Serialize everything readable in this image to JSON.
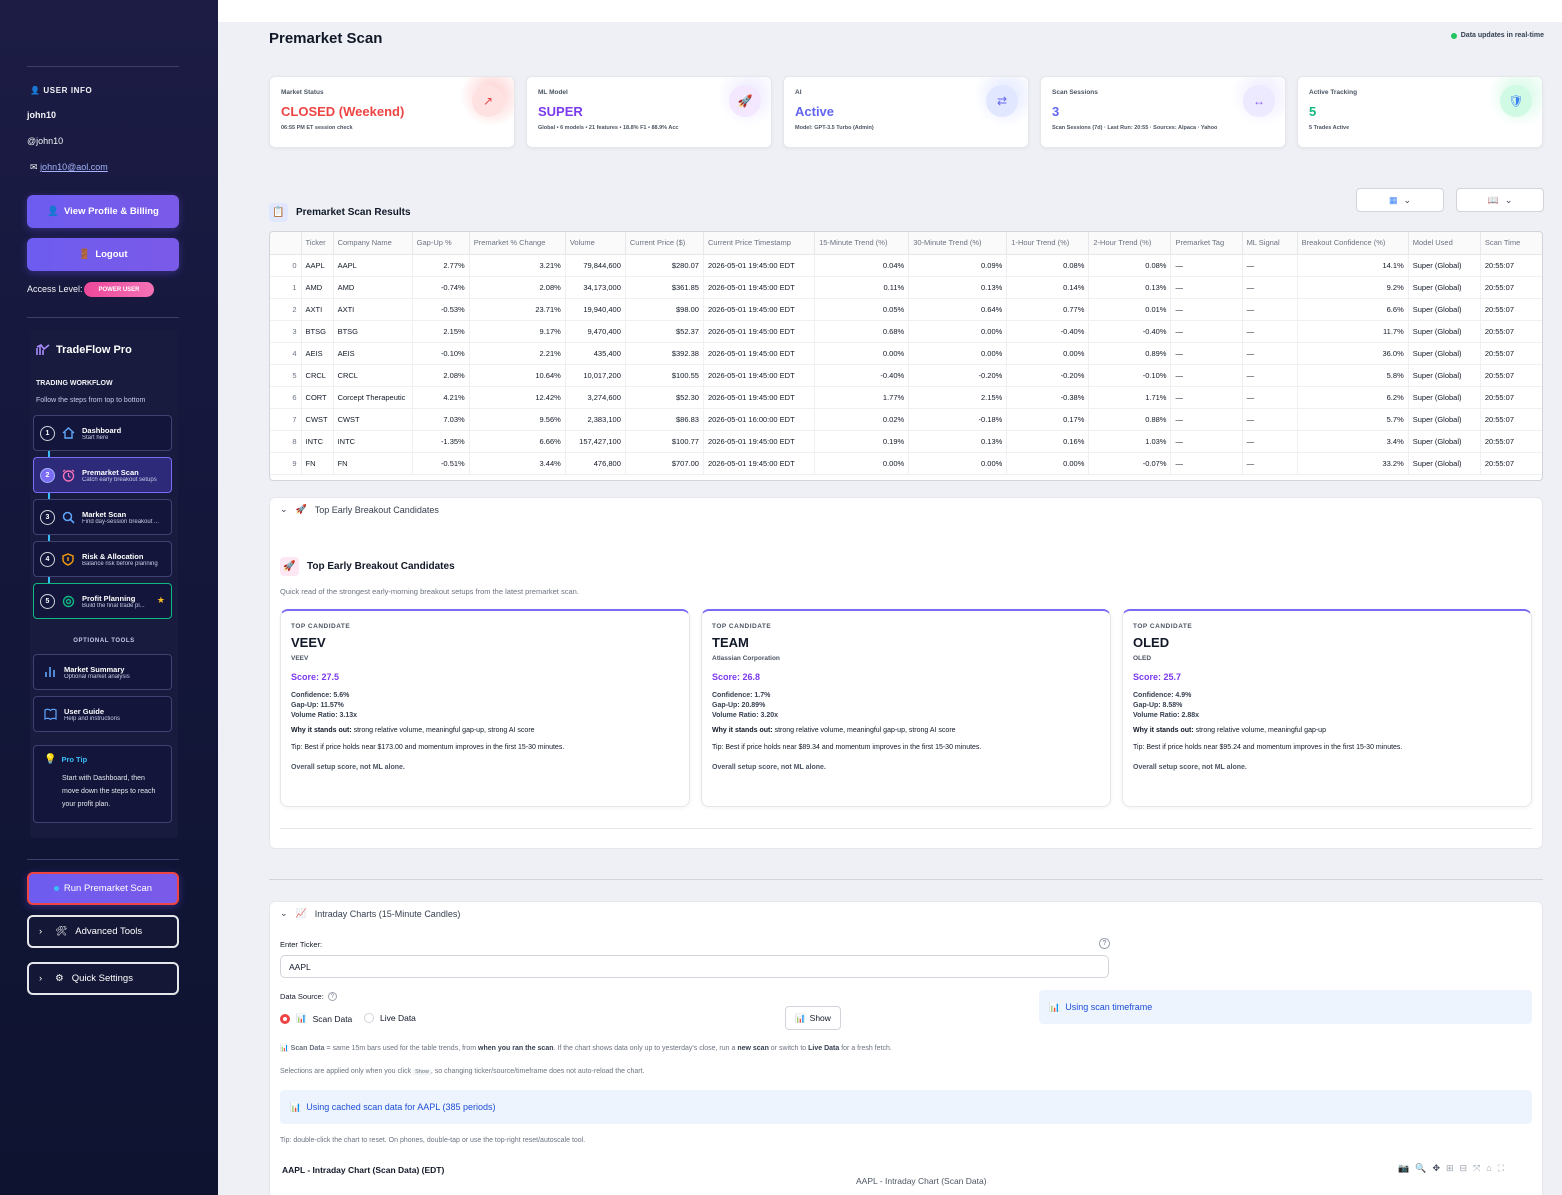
{
  "sidebar": {
    "user_info_title": "USER INFO",
    "username": "john10",
    "handle": "@john10",
    "email": "john10@aol.com",
    "profile_button": "View Profile & Billing",
    "logout_button": "Logout",
    "access_level_label": "Access Level:",
    "access_level_badge": "POWER USER",
    "app_name": "TradeFlow Pro",
    "workflow_title": "TRADING WORKFLOW",
    "workflow_hint": "Follow the steps from top to bottom",
    "steps": [
      {
        "num": "1",
        "label": "Dashboard",
        "desc": "Start here",
        "icon": "home-icon"
      },
      {
        "num": "2",
        "label": "Premarket Scan",
        "desc": "Catch early breakout setups",
        "icon": "alarm-clock-icon"
      },
      {
        "num": "3",
        "label": "Market Scan",
        "desc": "Find day-session breakout ...",
        "icon": "search-icon"
      },
      {
        "num": "4",
        "label": "Risk & Allocation",
        "desc": "Balance risk before planning",
        "icon": "shield-icon"
      },
      {
        "num": "5",
        "label": "Profit Planning",
        "desc": "Build the final trade pl...",
        "icon": "target-icon"
      }
    ],
    "optional_title": "OPTIONAL TOOLS",
    "optional": [
      {
        "label": "Market Summary",
        "desc": "Optional market analysis",
        "icon": "bar-chart-icon"
      },
      {
        "label": "User Guide",
        "desc": "Help and instructions",
        "icon": "book-icon"
      }
    ],
    "pro_tip_title": "Pro Tip",
    "pro_tip_text": "Start with Dashboard, then move down the steps to reach your profit plan.",
    "run_button": "Run Premarket Scan",
    "advanced_tools": "Advanced Tools",
    "quick_settings": "Quick Settings"
  },
  "header": {
    "title": "Premarket Scan",
    "realtime": "Data updates in real-time"
  },
  "cards": [
    {
      "label": "Market Status",
      "value": "CLOSED (Weekend)",
      "sub": "06:55 PM ET session check",
      "color": "#ef4444",
      "icon": "arrow-icon"
    },
    {
      "label": "ML Model",
      "value": "SUPER",
      "sub": "Global • 6 models • 21 features • 18.8% F1 • 88.9% Acc",
      "color": "#7c3aed",
      "icon": "rocket-icon"
    },
    {
      "label": "AI",
      "value": "Active",
      "sub": "Model: GPT-3.5 Turbo (Admin)",
      "color": "#6366f1",
      "icon": "exchange-icon"
    },
    {
      "label": "Scan Sessions",
      "value": "3",
      "sub": "Scan Sessions (7d) · Last Run: 20:55 · Sources: Alpaca · Yahoo",
      "color": "#6366f1",
      "icon": "resize-icon"
    },
    {
      "label": "Active Tracking",
      "value": "5",
      "sub": "5 Trades Active",
      "color": "#10b981",
      "icon": "shield-icon"
    }
  ],
  "results": {
    "title": "Premarket Scan Results",
    "columns": [
      "",
      "Ticker",
      "Company Name",
      "Gap-Up %",
      "Premarket % Change",
      "Volume",
      "Current Price ($)",
      "Current Price Timestamp",
      "15-Minute Trend (%)",
      "30-Minute Trend (%)",
      "1-Hour Trend (%)",
      "2-Hour Trend (%)",
      "Premarket Tag",
      "ML Signal",
      "Breakout Confidence (%)",
      "Model Used",
      "Scan Time"
    ],
    "rows": [
      [
        "0",
        "AAPL",
        "AAPL",
        "2.77%",
        "3.21%",
        "79,844,600",
        "$280.07",
        "2026-05-01 19:45:00 EDT",
        "0.04%",
        "0.09%",
        "0.08%",
        "0.08%",
        "—",
        "—",
        "14.1%",
        "Super (Global)",
        "20:55:07"
      ],
      [
        "1",
        "AMD",
        "AMD",
        "-0.74%",
        "2.08%",
        "34,173,000",
        "$361.85",
        "2026-05-01 19:45:00 EDT",
        "0.11%",
        "0.13%",
        "0.14%",
        "0.13%",
        "—",
        "—",
        "9.2%",
        "Super (Global)",
        "20:55:07"
      ],
      [
        "2",
        "AXTI",
        "AXTI",
        "-0.53%",
        "23.71%",
        "19,940,400",
        "$98.00",
        "2026-05-01 19:45:00 EDT",
        "0.05%",
        "0.64%",
        "0.77%",
        "0.01%",
        "—",
        "—",
        "6.6%",
        "Super (Global)",
        "20:55:07"
      ],
      [
        "3",
        "BTSG",
        "BTSG",
        "2.15%",
        "9.17%",
        "9,470,400",
        "$52.37",
        "2026-05-01 19:45:00 EDT",
        "0.68%",
        "0.00%",
        "-0.40%",
        "-0.40%",
        "—",
        "—",
        "11.7%",
        "Super (Global)",
        "20:55:07"
      ],
      [
        "4",
        "AEIS",
        "AEIS",
        "-0.10%",
        "2.21%",
        "435,400",
        "$392.38",
        "2026-05-01 19:45:00 EDT",
        "0.00%",
        "0.00%",
        "0.00%",
        "0.89%",
        "—",
        "—",
        "36.0%",
        "Super (Global)",
        "20:55:07"
      ],
      [
        "5",
        "CRCL",
        "CRCL",
        "2.08%",
        "10.64%",
        "10,017,200",
        "$100.55",
        "2026-05-01 19:45:00 EDT",
        "-0.40%",
        "-0.20%",
        "-0.20%",
        "-0.10%",
        "—",
        "—",
        "5.8%",
        "Super (Global)",
        "20:55:07"
      ],
      [
        "6",
        "CORT",
        "Corcept Therapeutic",
        "4.21%",
        "12.42%",
        "3,274,600",
        "$52.30",
        "2026-05-01 19:45:00 EDT",
        "1.77%",
        "2.15%",
        "-0.38%",
        "1.71%",
        "—",
        "—",
        "6.2%",
        "Super (Global)",
        "20:55:07"
      ],
      [
        "7",
        "CWST",
        "CWST",
        "7.03%",
        "9.56%",
        "2,383,100",
        "$86.83",
        "2026-05-01 16:00:00 EDT",
        "0.02%",
        "-0.18%",
        "0.17%",
        "0.88%",
        "—",
        "—",
        "5.7%",
        "Super (Global)",
        "20:55:07"
      ],
      [
        "8",
        "INTC",
        "INTC",
        "-1.35%",
        "6.66%",
        "157,427,100",
        "$100.77",
        "2026-05-01 19:45:00 EDT",
        "0.19%",
        "0.13%",
        "0.16%",
        "1.03%",
        "—",
        "—",
        "3.4%",
        "Super (Global)",
        "20:55:07"
      ],
      [
        "9",
        "FN",
        "FN",
        "-0.51%",
        "3.44%",
        "476,800",
        "$707.00",
        "2026-05-01 19:45:00 EDT",
        "0.00%",
        "0.00%",
        "0.00%",
        "-0.07%",
        "—",
        "—",
        "33.2%",
        "Super (Global)",
        "20:55:07"
      ]
    ]
  },
  "candidates_section": {
    "expander_label": "Top Early Breakout Candidates",
    "title": "Top Early Breakout Candidates",
    "subtitle": "Quick read of the strongest early-morning breakout setups from the latest premarket scan.",
    "items": [
      {
        "tag": "TOP CANDIDATE",
        "ticker": "VEEV",
        "name": "VEEV",
        "score": "Score: 27.5",
        "confidence": "Confidence: 5.6%",
        "gap": "Gap-Up: 11.57%",
        "volume": "Volume Ratio: 3.13x",
        "why_label": "Why it stands out:",
        "why": " strong relative volume, meaningful gap-up, strong AI score",
        "tip": "Tip: Best if price holds near $173.00 and momentum improves in the first 15-30 minutes.",
        "overall": "Overall setup score, not ML alone."
      },
      {
        "tag": "TOP CANDIDATE",
        "ticker": "TEAM",
        "name": "Atlassian Corporation",
        "score": "Score: 26.8",
        "confidence": "Confidence: 1.7%",
        "gap": "Gap-Up: 20.89%",
        "volume": "Volume Ratio: 3.20x",
        "why_label": "Why it stands out:",
        "why": " strong relative volume, meaningful gap-up, strong AI score",
        "tip": "Tip: Best if price holds near $89.34 and momentum improves in the first 15-30 minutes.",
        "overall": "Overall setup score, not ML alone."
      },
      {
        "tag": "TOP CANDIDATE",
        "ticker": "OLED",
        "name": "OLED",
        "score": "Score: 25.7",
        "confidence": "Confidence: 4.9%",
        "gap": "Gap-Up: 8.58%",
        "volume": "Volume Ratio: 2.88x",
        "why_label": "Why it stands out:",
        "why": " strong relative volume, meaningful gap-up",
        "tip": "Tip: Best if price holds near $95.24 and momentum improves in the first 15-30 minutes.",
        "overall": "Overall setup score, not ML alone."
      }
    ]
  },
  "intraday": {
    "expander_label": "Intraday Charts (15-Minute Candles)",
    "ticker_label": "Enter Ticker:",
    "ticker_value": "AAPL",
    "source_label": "Data Source:",
    "option_scan": "Scan Data",
    "option_live": "Live Data",
    "show_button": "Show",
    "timeframe_info": "Using scan timeframe",
    "note_prefix": "Scan Data",
    "note_1": " = same 15m bars used for the table trends, from ",
    "note_bold_1": "when you ran the scan",
    "note_2": ". If the chart shows data only up to yesterday's close, run a ",
    "note_bold_2": "new scan",
    "note_3": " or switch to ",
    "note_bold_3": "Live Data",
    "note_4": " for a fresh fetch.",
    "selection_note_1": "Selections are applied only when you click ",
    "selection_show": "Show",
    "selection_note_2": ", so changing ticker/source/timeframe does not auto-reload the chart.",
    "cached_info": "Using cached scan data for AAPL (385 periods)",
    "reset_tip": "Tip: double-click the chart to reset. On phones, double-tap or use the top-right reset/autoscale tool.",
    "chart_heading": "AAPL - Intraday Chart (Scan Data) (EDT)",
    "chart_title": "AAPL - Intraday Chart (Scan Data)"
  }
}
